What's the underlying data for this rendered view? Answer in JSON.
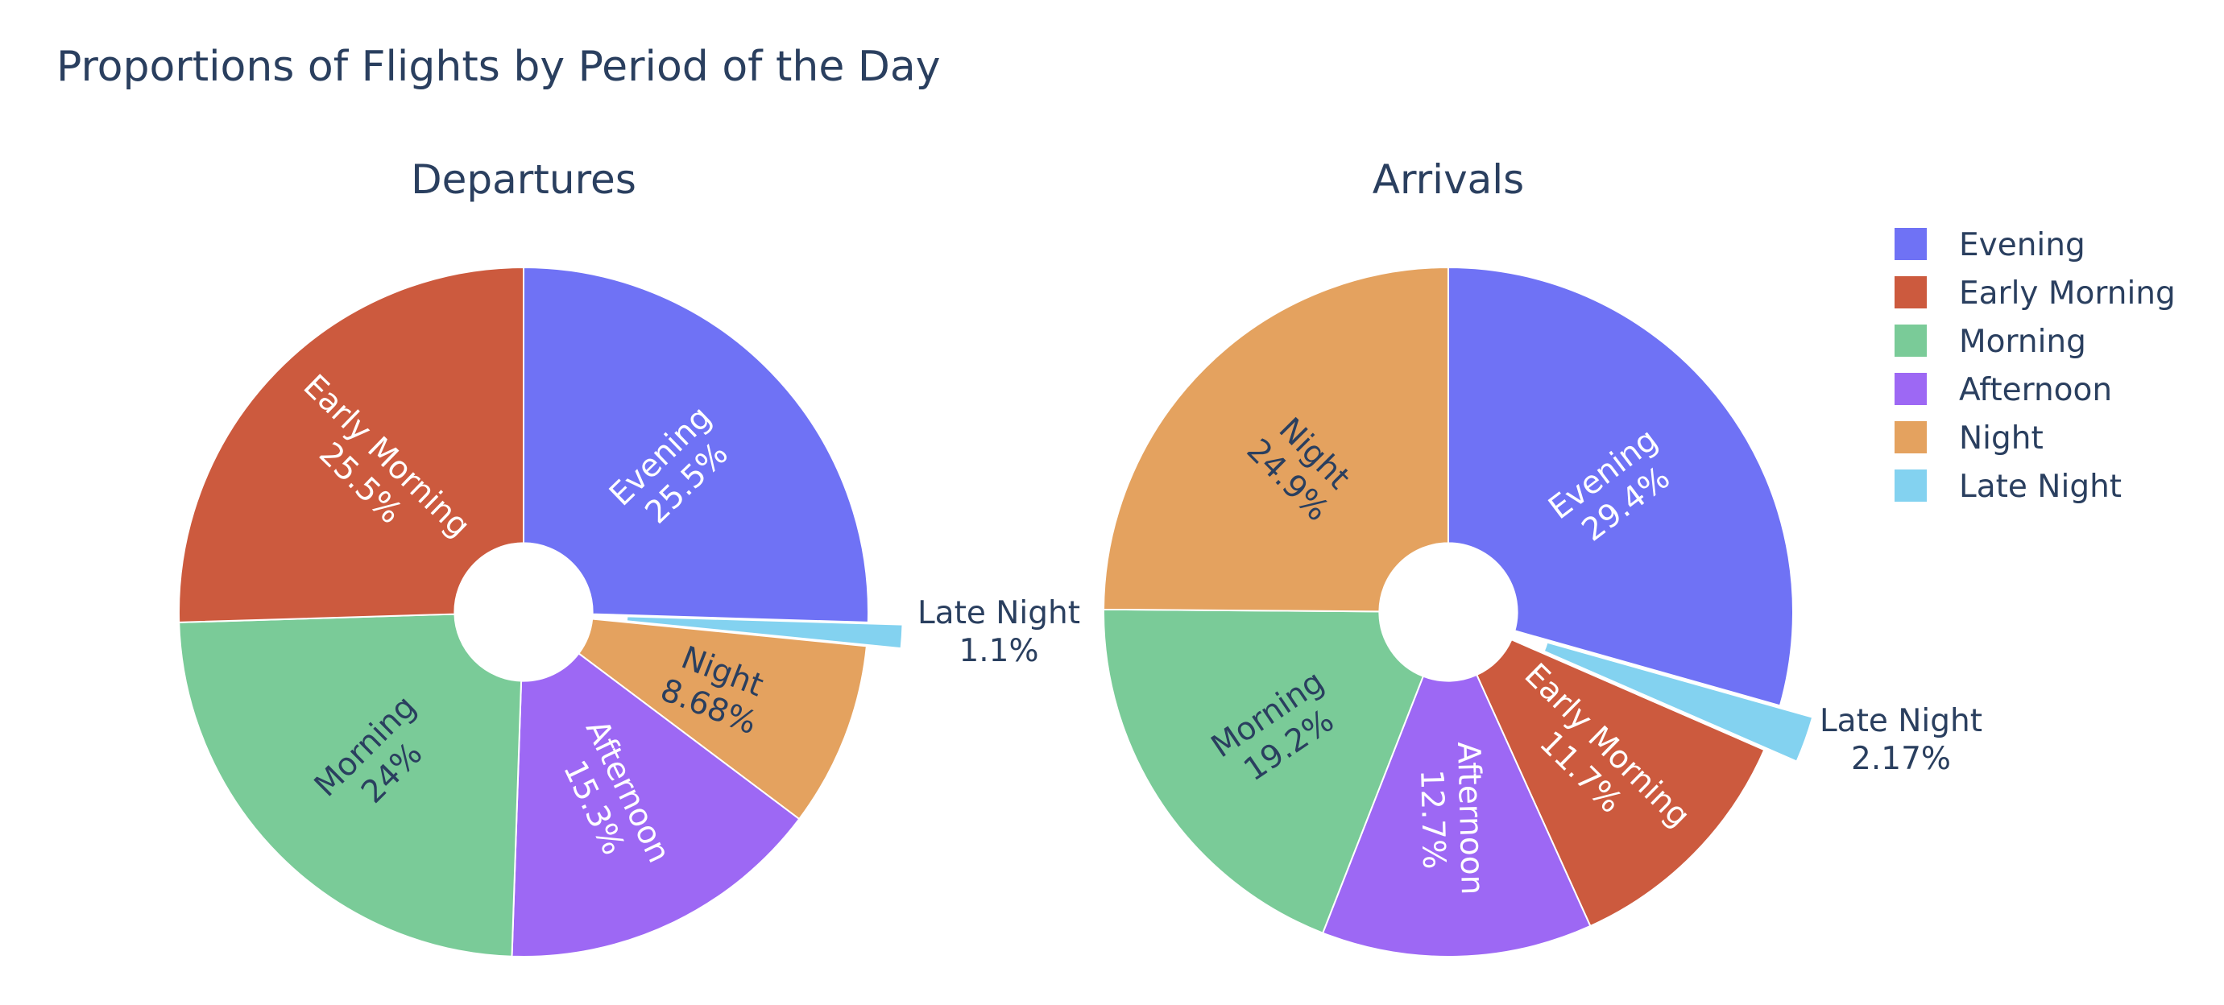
{
  "chart_data": {
    "type": "pie",
    "title": "Proportions of Flights by Period of the Day",
    "legend": {
      "position": "top-right",
      "entries": [
        {
          "label": "Evening",
          "color": "#6f72f5"
        },
        {
          "label": "Early Morning",
          "color": "#cc5a3e"
        },
        {
          "label": "Morning",
          "color": "#7acb98"
        },
        {
          "label": "Afternoon",
          "color": "#9d68f4"
        },
        {
          "label": "Night",
          "color": "#e4a25f"
        },
        {
          "label": "Late Night",
          "color": "#83d2f0"
        }
      ]
    },
    "charts": [
      {
        "title": "Departures",
        "hole": 0.2,
        "slices": [
          {
            "label": "Evening",
            "value": 25.5,
            "text": "25.5%",
            "color": "#6f72f5"
          },
          {
            "label": "Late Night",
            "value": 1.1,
            "text": "1.1%",
            "color": "#83d2f0",
            "pulled": true
          },
          {
            "label": "Night",
            "value": 8.68,
            "text": "8.68%",
            "color": "#e4a25f"
          },
          {
            "label": "Afternoon",
            "value": 15.3,
            "text": "15.3%",
            "color": "#9d68f4"
          },
          {
            "label": "Morning",
            "value": 24,
            "text": "24%",
            "color": "#7acb98"
          },
          {
            "label": "Early Morning",
            "value": 25.5,
            "text": "25.5%",
            "color": "#cc5a3e"
          }
        ]
      },
      {
        "title": "Arrivals",
        "hole": 0.2,
        "slices": [
          {
            "label": "Evening",
            "value": 29.4,
            "text": "29.4%",
            "color": "#6f72f5"
          },
          {
            "label": "Late Night",
            "value": 2.17,
            "text": "2.17%",
            "color": "#83d2f0",
            "pulled": true
          },
          {
            "label": "Early Morning",
            "value": 11.7,
            "text": "11.7%",
            "color": "#cc5a3e"
          },
          {
            "label": "Afternoon",
            "value": 12.7,
            "text": "12.7%",
            "color": "#9d68f4"
          },
          {
            "label": "Morning",
            "value": 19.2,
            "text": "19.2%",
            "color": "#7acb98"
          },
          {
            "label": "Night",
            "value": 24.9,
            "text": "24.9%",
            "color": "#e4a25f"
          }
        ]
      }
    ]
  }
}
